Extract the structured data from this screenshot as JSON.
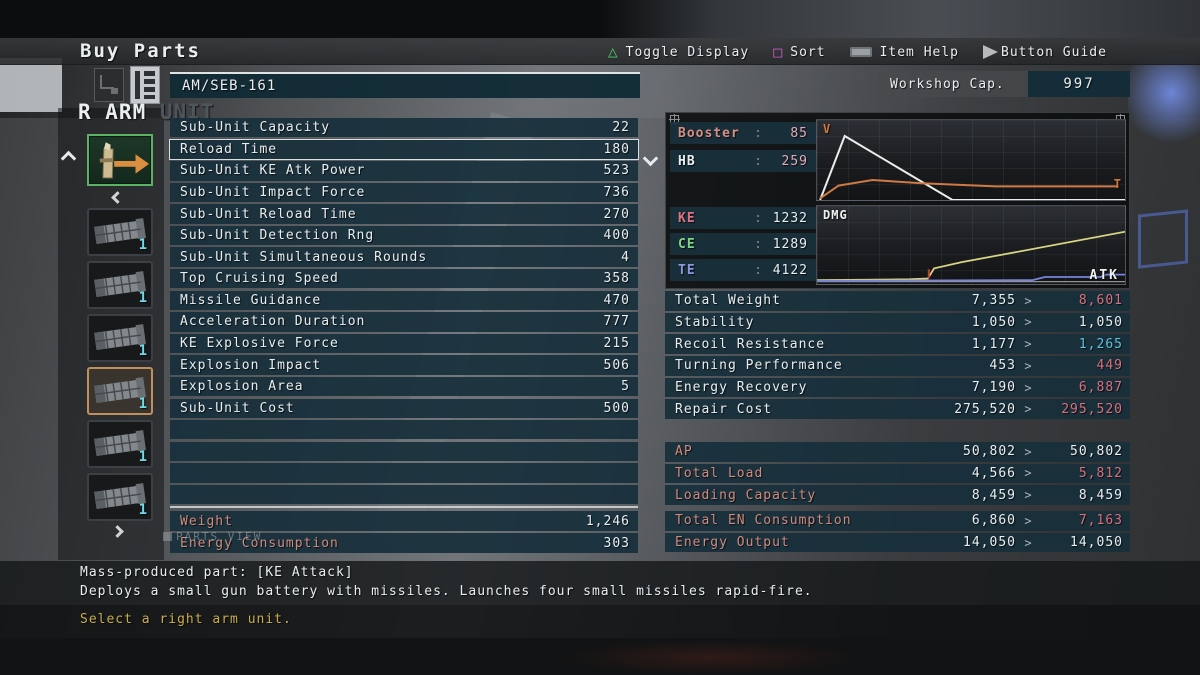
{
  "header": {
    "title": "Buy Parts",
    "toolbar": [
      {
        "icon": "triangle",
        "label": "Toggle Display"
      },
      {
        "icon": "square",
        "label": "Sort"
      },
      {
        "icon": "touchpad",
        "label": "Item Help"
      },
      {
        "icon": "arrow",
        "label": "Button Guide"
      }
    ]
  },
  "workshop": {
    "label": "Workshop Cap.",
    "value": "997"
  },
  "category": {
    "slot": "R ARM",
    "suffix": "UNIT"
  },
  "part": {
    "name": "AM/SEB-161"
  },
  "stats": {
    "rows": [
      {
        "label": "Sub-Unit Capacity",
        "value": "22"
      },
      {
        "label": "Reload Time",
        "value": "180",
        "highlight": true
      },
      {
        "label": "Sub-Unit KE Atk Power",
        "value": "523"
      },
      {
        "label": "Sub-Unit Impact Force",
        "value": "736"
      },
      {
        "label": "Sub-Unit Reload Time",
        "value": "270"
      },
      {
        "label": "Sub-Unit Detection Rng",
        "value": "400"
      },
      {
        "label": "Sub-Unit Simultaneous Rounds",
        "value": "4"
      },
      {
        "label": "Top Cruising Speed",
        "value": "358"
      },
      {
        "label": "Missile Guidance",
        "value": "470"
      },
      {
        "label": "Acceleration Duration",
        "value": "777"
      },
      {
        "label": "KE Explosive Force",
        "value": "215"
      },
      {
        "label": "Explosion Impact",
        "value": "506"
      },
      {
        "label": "Explosion Area",
        "value": "5"
      },
      {
        "label": "Sub-Unit Cost",
        "value": "500"
      },
      {
        "empty": true
      },
      {
        "empty": true
      },
      {
        "empty": true
      },
      {
        "empty": true
      }
    ],
    "weight_label": "Weight",
    "weight_value": "1,246",
    "energy_label": "Energy Consumption",
    "energy_value": "303"
  },
  "watermark": "PARTS VIEW",
  "sidebar": {
    "items": [
      {
        "count": "1"
      },
      {
        "count": "1"
      },
      {
        "count": "1"
      },
      {
        "count": "1",
        "highlighted": true
      },
      {
        "count": "1"
      },
      {
        "count": "1"
      }
    ]
  },
  "defense": {
    "separator": ":",
    "rows": [
      {
        "label": "Booster",
        "value": "85",
        "label_color": "#d78f83",
        "value_color": "#e8a8b6"
      },
      {
        "label": "HB",
        "value": "259",
        "label_color": "#e9eef0",
        "value_color": "#e8a8b6"
      },
      {
        "label": "KE",
        "value": "1232",
        "label_color": "#de7385",
        "value_color": "#e9eef0"
      },
      {
        "label": "CE",
        "value": "1289",
        "label_color": "#80d584",
        "value_color": "#e9eef0"
      },
      {
        "label": "TE",
        "value": "4122",
        "label_color": "#8d97de",
        "value_color": "#e9eef0"
      }
    ]
  },
  "graphs": {
    "v": {
      "label": "V",
      "end_label": "T",
      "series": [
        {
          "name": "velocity",
          "color": "#ececec",
          "width": 2,
          "points": [
            [
              1,
              0
            ],
            [
              9,
              80
            ],
            [
              44,
              0
            ],
            [
              100,
              0
            ]
          ]
        },
        {
          "name": "thrust",
          "color": "#cf7a44",
          "width": 2,
          "points": [
            [
              1,
              2
            ],
            [
              7,
              18
            ],
            [
              18,
              25
            ],
            [
              34,
              21
            ],
            [
              58,
              17
            ],
            [
              98,
              17
            ]
          ]
        }
      ]
    },
    "dmg": {
      "label": "DMG",
      "end_label": "ATK",
      "series": [
        {
          "name": "baseline",
          "color": "#8e9294",
          "width": 1.2,
          "points": [
            [
              0,
              3
            ],
            [
              100,
              3
            ]
          ]
        },
        {
          "name": "damage",
          "color": "#d8d483",
          "width": 1.8,
          "points": [
            [
              0,
              5
            ],
            [
              30,
              6
            ],
            [
              36,
              7
            ],
            [
              38,
              20
            ],
            [
              47,
              28
            ],
            [
              58,
              36
            ],
            [
              100,
              67
            ]
          ]
        },
        {
          "name": "step-marker",
          "color": "#b8412f",
          "width": 2,
          "points": [
            [
              36.3,
              7
            ],
            [
              36.3,
              19
            ]
          ]
        },
        {
          "name": "attack",
          "color": "#7a84d8",
          "width": 1.8,
          "points": [
            [
              0,
              4
            ],
            [
              70,
              5
            ],
            [
              74,
              9
            ],
            [
              92,
              9
            ],
            [
              94,
              12
            ],
            [
              100,
              12
            ]
          ]
        }
      ]
    }
  },
  "comparison": {
    "arrow": ">",
    "performance": [
      {
        "label": "Total Weight",
        "old": "7,355",
        "new": "8,601",
        "status": "worse"
      },
      {
        "label": "Stability",
        "old": "1,050",
        "new": "1,050",
        "status": "same"
      },
      {
        "label": "Recoil Resistance",
        "old": "1,177",
        "new": "1,265",
        "status": "better"
      },
      {
        "label": "Turning Performance",
        "old": "453",
        "new": "449",
        "status": "worse"
      },
      {
        "label": "Energy Recovery",
        "old": "7,190",
        "new": "6,887",
        "status": "worse"
      },
      {
        "label": "Repair Cost",
        "old": "275,520",
        "new": "295,520",
        "status": "worse"
      }
    ],
    "totals": [
      {
        "label": "AP",
        "old": "50,802",
        "new": "50,802",
        "status": "same"
      },
      {
        "label": "Total Load",
        "old": "4,566",
        "new": "5,812",
        "status": "worse"
      },
      {
        "label": "Loading Capacity",
        "old": "8,459",
        "new": "8,459",
        "status": "same"
      },
      {
        "gap": true
      },
      {
        "label": "Total EN Consumption",
        "old": "6,860",
        "new": "7,163",
        "status": "worse"
      },
      {
        "label": "Energy Output",
        "old": "14,050",
        "new": "14,050",
        "status": "same"
      }
    ]
  },
  "description": {
    "line1": "Mass-produced part: [KE Attack]",
    "line2": "Deploys a small gun battery with missiles. Launches four small missiles rapid-fire."
  },
  "prompt": "Select a right arm unit.",
  "colors": {
    "worse": "#d9707e",
    "better": "#5fc3de",
    "same": "#e9eef0",
    "salmon_label": "#d08a7e",
    "prompt_yellow": "#c9ad4a",
    "count_cyan": "#6fd9e6",
    "selected_green": "#5ab263",
    "hover_orange": "#c08f5e",
    "triangle_green": "#4ec46a",
    "square_magenta": "#d45ac6"
  }
}
